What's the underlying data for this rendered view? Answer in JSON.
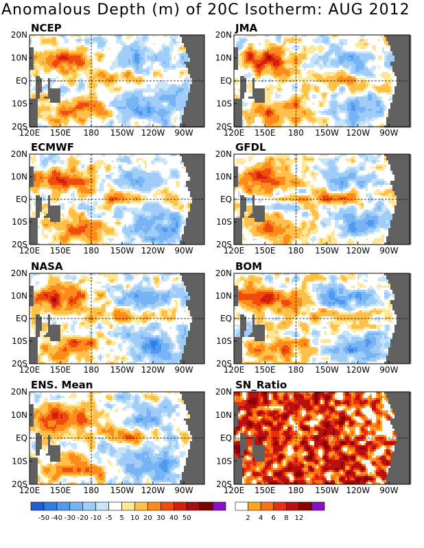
{
  "title": "Anomalous Depth (m) of 20C Isotherm: AUG 2012",
  "colors": {
    "anom": [
      "#1f5fd6",
      "#2f7de6",
      "#4f9af0",
      "#76b4f5",
      "#9fcdf8",
      "#c8e4fb",
      "#ffffff",
      "#ffe79a",
      "#ffc04a",
      "#ff8c1a",
      "#ef4a10",
      "#d41f0a",
      "#a80c0c",
      "#7a0000",
      "#8a10c8"
    ],
    "sn": [
      "#ffffff",
      "#ffa520",
      "#ff7010",
      "#e83010",
      "#b81010",
      "#8a0000",
      "#8a10c8"
    ],
    "land": "#606060"
  },
  "chart_data": {
    "type": "heatmap",
    "panels": [
      {
        "name": "NCEP"
      },
      {
        "name": "JMA"
      },
      {
        "name": "ECMWF"
      },
      {
        "name": "GFDL"
      },
      {
        "name": "NASA"
      },
      {
        "name": "BOM"
      },
      {
        "name": "ENS. Mean"
      },
      {
        "name": "SN_Ratio"
      }
    ],
    "x_ticks": [
      "120E",
      "150E",
      "180",
      "150W",
      "120W",
      "90W"
    ],
    "x_tick_values": [
      120,
      150,
      180,
      210,
      240,
      270
    ],
    "y_ticks": [
      "20N",
      "10N",
      "EQ",
      "10S",
      "20S"
    ],
    "y_tick_values": [
      20,
      10,
      0,
      -10,
      -20
    ],
    "xlim": [
      120,
      290
    ],
    "ylim": [
      -20,
      20
    ],
    "reference_lines": {
      "x": 180,
      "y": 0
    },
    "colorbar_anomaly": {
      "units": "m",
      "labels": [
        "-50",
        "-40",
        "-30",
        "-20",
        "-10",
        "-5",
        "5",
        "10",
        "20",
        "30",
        "40",
        "50"
      ]
    },
    "colorbar_sn_ratio": {
      "labels": [
        "2",
        "4",
        "6",
        "8",
        "12"
      ]
    }
  }
}
